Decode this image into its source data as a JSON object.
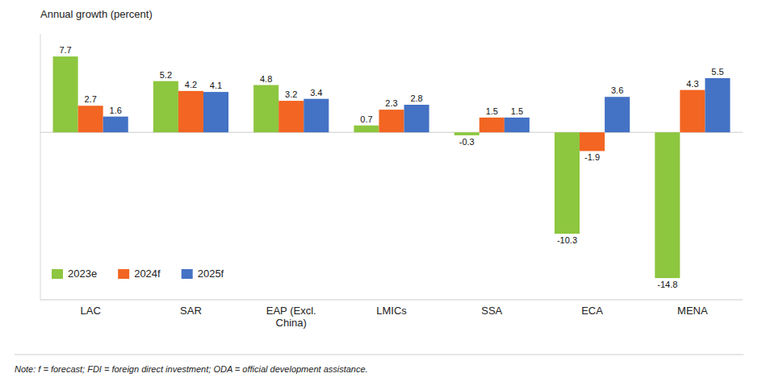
{
  "chart_data": {
    "type": "bar",
    "ylabel": "Annual growth (percent)",
    "annotations": [
      "Note: f = forecast; FDI = foreign direct investment; ODA = official development assistance."
    ],
    "categories": [
      "LAC",
      "SAR",
      "EAP (Excl.\nChina)",
      "LMICs",
      "SSA",
      "ECA",
      "MENA"
    ],
    "series": [
      {
        "name": "2023e",
        "color": "#8DC63F",
        "values": [
          7.7,
          5.2,
          4.8,
          0.7,
          -0.3,
          -10.3,
          -14.8
        ]
      },
      {
        "name": "2024f",
        "color": "#F26522",
        "values": [
          2.7,
          4.2,
          3.2,
          2.3,
          1.5,
          -1.9,
          4.3
        ]
      },
      {
        "name": "2025f",
        "color": "#4472C4",
        "values": [
          1.6,
          4.1,
          3.4,
          2.8,
          1.5,
          3.6,
          5.5
        ]
      }
    ],
    "ylim": [
      -17,
      10
    ],
    "data_labels": true,
    "tick_labels": "x",
    "grid": false,
    "legend": "lower left"
  }
}
